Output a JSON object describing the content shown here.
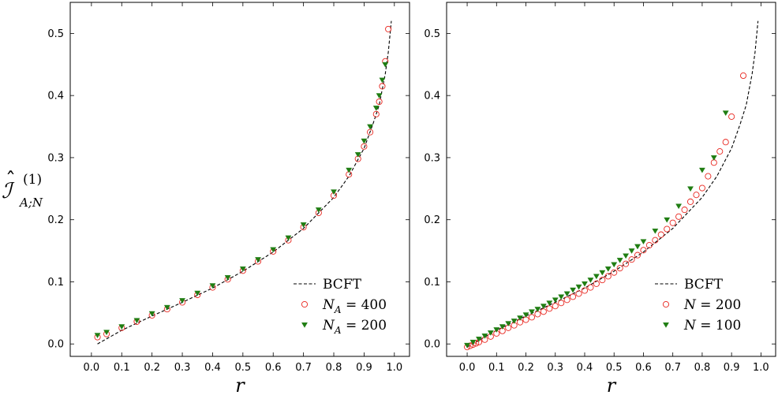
{
  "colors": {
    "theory_line": "#000000",
    "series_open_circle": "#e8261f",
    "series_triangle": "#1f7d12",
    "axes": "#000000"
  },
  "y_label": {
    "main": "ℐ",
    "hat": "ˆ",
    "superscript": "(1)",
    "subscript": "A;N"
  },
  "chart_data": [
    {
      "type": "scatter",
      "xlabel": "r",
      "xlim": [
        -0.07,
        1.05
      ],
      "ylim": [
        -0.02,
        0.55
      ],
      "xticks": [
        0.0,
        0.1,
        0.2,
        0.3,
        0.4,
        0.5,
        0.6,
        0.7,
        0.8,
        0.9,
        1.0
      ],
      "yticks": [
        0.0,
        0.1,
        0.2,
        0.3,
        0.4,
        0.5
      ],
      "xtick_labels": [
        "0.0",
        "0.1",
        "0.2",
        "0.3",
        "0.4",
        "0.5",
        "0.6",
        "0.7",
        "0.8",
        "0.9",
        "1.0"
      ],
      "ytick_labels": [
        "0.0",
        "0.1",
        "0.2",
        "0.3",
        "0.4",
        "0.5"
      ],
      "legend_position": "bottom-right",
      "theory": {
        "name": "BCFT",
        "style": "dashed",
        "x": [
          0.02,
          0.1,
          0.2,
          0.3,
          0.4,
          0.5,
          0.6,
          0.7,
          0.8,
          0.85,
          0.9,
          0.93,
          0.95,
          0.97,
          0.98,
          0.99
        ],
        "y": [
          0.0,
          0.022,
          0.045,
          0.067,
          0.09,
          0.117,
          0.148,
          0.186,
          0.236,
          0.27,
          0.315,
          0.355,
          0.385,
          0.435,
          0.47,
          0.52
        ]
      },
      "series": [
        {
          "name": "N_A = 400",
          "name_var": "N",
          "name_sub": "A",
          "name_rest": " = 400",
          "marker": "open-circle",
          "x": [
            0.02,
            0.05,
            0.1,
            0.15,
            0.2,
            0.25,
            0.3,
            0.35,
            0.4,
            0.45,
            0.5,
            0.55,
            0.6,
            0.65,
            0.7,
            0.75,
            0.8,
            0.85,
            0.88,
            0.9,
            0.92,
            0.94,
            0.95,
            0.96,
            0.97,
            0.98
          ],
          "y": [
            0.011,
            0.016,
            0.026,
            0.036,
            0.046,
            0.056,
            0.067,
            0.079,
            0.091,
            0.104,
            0.118,
            0.133,
            0.149,
            0.167,
            0.188,
            0.211,
            0.239,
            0.273,
            0.298,
            0.318,
            0.341,
            0.37,
            0.39,
            0.415,
            0.455,
            0.507
          ]
        },
        {
          "name": "N_A = 200",
          "name_var": "N",
          "name_sub": "A",
          "name_rest": " = 200",
          "marker": "filled-triangle-down",
          "x": [
            0.02,
            0.05,
            0.1,
            0.15,
            0.2,
            0.25,
            0.3,
            0.35,
            0.4,
            0.45,
            0.5,
            0.55,
            0.6,
            0.65,
            0.7,
            0.75,
            0.8,
            0.85,
            0.88,
            0.9,
            0.92,
            0.94,
            0.95,
            0.96,
            0.97
          ],
          "y": [
            0.014,
            0.019,
            0.028,
            0.038,
            0.049,
            0.059,
            0.07,
            0.082,
            0.094,
            0.107,
            0.121,
            0.136,
            0.152,
            0.171,
            0.192,
            0.216,
            0.245,
            0.28,
            0.305,
            0.327,
            0.35,
            0.38,
            0.4,
            0.425,
            0.45
          ]
        }
      ]
    },
    {
      "type": "scatter",
      "xlabel": "r",
      "xlim": [
        -0.07,
        1.05
      ],
      "ylim": [
        -0.02,
        0.55
      ],
      "xticks": [
        0.0,
        0.1,
        0.2,
        0.3,
        0.4,
        0.5,
        0.6,
        0.7,
        0.8,
        0.9,
        1.0
      ],
      "yticks": [
        0.0,
        0.1,
        0.2,
        0.3,
        0.4,
        0.5
      ],
      "xtick_labels": [
        "0.0",
        "0.1",
        "0.2",
        "0.3",
        "0.4",
        "0.5",
        "0.6",
        "0.7",
        "0.8",
        "0.9",
        "1.0"
      ],
      "ytick_labels": [
        "0.0",
        "0.1",
        "0.2",
        "0.3",
        "0.4",
        "0.5"
      ],
      "legend_position": "bottom-right",
      "theory": {
        "name": "BCFT",
        "style": "dashed",
        "x": [
          0.0,
          0.1,
          0.2,
          0.3,
          0.4,
          0.5,
          0.6,
          0.7,
          0.8,
          0.85,
          0.9,
          0.93,
          0.95,
          0.97,
          0.98,
          0.99
        ],
        "y": [
          -0.005,
          0.022,
          0.045,
          0.067,
          0.09,
          0.117,
          0.148,
          0.186,
          0.236,
          0.27,
          0.315,
          0.355,
          0.385,
          0.435,
          0.47,
          0.52
        ]
      },
      "series": [
        {
          "name": "N = 200",
          "name_var": "N",
          "name_sub": "",
          "name_rest": " = 200",
          "marker": "open-circle",
          "x": [
            0.0,
            0.01,
            0.02,
            0.03,
            0.04,
            0.06,
            0.08,
            0.1,
            0.12,
            0.14,
            0.16,
            0.18,
            0.2,
            0.22,
            0.24,
            0.26,
            0.28,
            0.3,
            0.32,
            0.34,
            0.36,
            0.38,
            0.4,
            0.42,
            0.44,
            0.46,
            0.48,
            0.5,
            0.52,
            0.54,
            0.56,
            0.58,
            0.6,
            0.62,
            0.64,
            0.66,
            0.68,
            0.7,
            0.72,
            0.74,
            0.76,
            0.78,
            0.8,
            0.82,
            0.84,
            0.86,
            0.88,
            0.9,
            0.94
          ],
          "y": [
            -0.005,
            -0.003,
            -0.001,
            0.001,
            0.003,
            0.007,
            0.012,
            0.017,
            0.021,
            0.026,
            0.03,
            0.035,
            0.039,
            0.043,
            0.048,
            0.052,
            0.057,
            0.061,
            0.066,
            0.071,
            0.076,
            0.081,
            0.086,
            0.091,
            0.097,
            0.103,
            0.109,
            0.115,
            0.122,
            0.129,
            0.136,
            0.143,
            0.151,
            0.159,
            0.167,
            0.176,
            0.185,
            0.195,
            0.205,
            0.216,
            0.229,
            0.24,
            0.251,
            0.27,
            0.292,
            0.31,
            0.325,
            0.366,
            0.432
          ]
        },
        {
          "name": "N = 100",
          "name_var": "N",
          "name_sub": "",
          "name_rest": " = 100",
          "marker": "filled-triangle-down",
          "x": [
            0.0,
            0.02,
            0.04,
            0.06,
            0.08,
            0.1,
            0.12,
            0.14,
            0.16,
            0.18,
            0.2,
            0.22,
            0.24,
            0.26,
            0.28,
            0.3,
            0.32,
            0.34,
            0.36,
            0.38,
            0.4,
            0.42,
            0.44,
            0.46,
            0.48,
            0.5,
            0.52,
            0.54,
            0.56,
            0.58,
            0.6,
            0.64,
            0.68,
            0.72,
            0.76,
            0.8,
            0.84,
            0.88
          ],
          "y": [
            -0.002,
            0.003,
            0.008,
            0.013,
            0.018,
            0.023,
            0.028,
            0.033,
            0.037,
            0.042,
            0.047,
            0.052,
            0.056,
            0.061,
            0.066,
            0.071,
            0.076,
            0.081,
            0.087,
            0.092,
            0.097,
            0.103,
            0.109,
            0.115,
            0.121,
            0.128,
            0.135,
            0.142,
            0.15,
            0.157,
            0.165,
            0.182,
            0.2,
            0.222,
            0.25,
            0.28,
            0.3,
            0.372
          ]
        }
      ]
    }
  ]
}
